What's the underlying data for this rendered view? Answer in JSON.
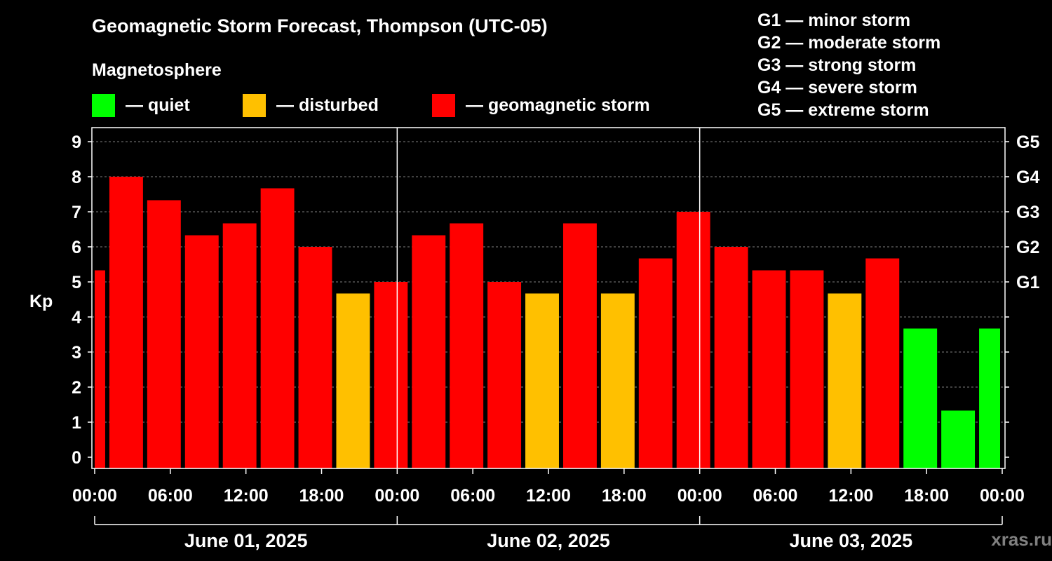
{
  "title": "Geomagnetic Storm Forecast, Thompson (UTC-05)",
  "legend": {
    "title": "Magnetosphere",
    "items": [
      {
        "color": "#00ff00",
        "label": "— quiet"
      },
      {
        "color": "#ffc000",
        "label": "— disturbed"
      },
      {
        "color": "#ff0000",
        "label": "— geomagnetic storm"
      }
    ]
  },
  "g_scale": [
    "G1 — minor storm",
    "G2 — moderate storm",
    "G3 — strong storm",
    "G4 — severe storm",
    "G5 — extreme storm"
  ],
  "watermark": "xras.ru",
  "chart_data": {
    "type": "bar",
    "ylabel": "Kp",
    "ylim": [
      0,
      9
    ],
    "yticks": [
      0,
      1,
      2,
      3,
      4,
      5,
      6,
      7,
      8,
      9
    ],
    "grid": "dashed horizontal",
    "right_axis_ticks": [
      {
        "kp": 5,
        "label": "G1"
      },
      {
        "kp": 6,
        "label": "G2"
      },
      {
        "kp": 7,
        "label": "G3"
      },
      {
        "kp": 8,
        "label": "G4"
      },
      {
        "kp": 9,
        "label": "G5"
      }
    ],
    "x_tick_labels": [
      "00:00",
      "06:00",
      "12:00",
      "18:00",
      "00:00",
      "06:00",
      "12:00",
      "18:00",
      "00:00",
      "06:00",
      "12:00",
      "18:00",
      "00:00"
    ],
    "day_labels": [
      "June 01, 2025",
      "June 02, 2025",
      "June 03, 2025"
    ],
    "colors": {
      "quiet": "#00ff00",
      "disturbed": "#ffc000",
      "storm": "#ff0000"
    },
    "bars": [
      {
        "start": "June 01, 2025 00:00",
        "hours": 1,
        "kp": 5.33,
        "level": "storm"
      },
      {
        "start": "June 01, 2025 01:00",
        "hours": 3,
        "kp": 8.0,
        "level": "storm"
      },
      {
        "start": "June 01, 2025 04:00",
        "hours": 3,
        "kp": 7.33,
        "level": "storm"
      },
      {
        "start": "June 01, 2025 07:00",
        "hours": 3,
        "kp": 6.33,
        "level": "storm"
      },
      {
        "start": "June 01, 2025 10:00",
        "hours": 3,
        "kp": 6.67,
        "level": "storm"
      },
      {
        "start": "June 01, 2025 13:00",
        "hours": 3,
        "kp": 7.67,
        "level": "storm"
      },
      {
        "start": "June 01, 2025 16:00",
        "hours": 3,
        "kp": 6.0,
        "level": "storm"
      },
      {
        "start": "June 01, 2025 19:00",
        "hours": 3,
        "kp": 4.67,
        "level": "disturbed"
      },
      {
        "start": "June 01, 2025 22:00",
        "hours": 3,
        "kp": 5.0,
        "level": "storm"
      },
      {
        "start": "June 02, 2025 01:00",
        "hours": 3,
        "kp": 6.33,
        "level": "storm"
      },
      {
        "start": "June 02, 2025 04:00",
        "hours": 3,
        "kp": 6.67,
        "level": "storm"
      },
      {
        "start": "June 02, 2025 07:00",
        "hours": 3,
        "kp": 5.0,
        "level": "storm"
      },
      {
        "start": "June 02, 2025 10:00",
        "hours": 3,
        "kp": 4.67,
        "level": "disturbed"
      },
      {
        "start": "June 02, 2025 13:00",
        "hours": 3,
        "kp": 6.67,
        "level": "storm"
      },
      {
        "start": "June 02, 2025 16:00",
        "hours": 3,
        "kp": 4.67,
        "level": "disturbed"
      },
      {
        "start": "June 02, 2025 19:00",
        "hours": 3,
        "kp": 5.67,
        "level": "storm"
      },
      {
        "start": "June 02, 2025 22:00",
        "hours": 3,
        "kp": 7.0,
        "level": "storm"
      },
      {
        "start": "June 03, 2025 01:00",
        "hours": 3,
        "kp": 6.0,
        "level": "storm"
      },
      {
        "start": "June 03, 2025 04:00",
        "hours": 3,
        "kp": 5.33,
        "level": "storm"
      },
      {
        "start": "June 03, 2025 07:00",
        "hours": 3,
        "kp": 5.33,
        "level": "storm"
      },
      {
        "start": "June 03, 2025 10:00",
        "hours": 3,
        "kp": 4.67,
        "level": "disturbed"
      },
      {
        "start": "June 03, 2025 13:00",
        "hours": 3,
        "kp": 5.67,
        "level": "storm"
      },
      {
        "start": "June 03, 2025 16:00",
        "hours": 3,
        "kp": 3.67,
        "level": "quiet"
      },
      {
        "start": "June 03, 2025 19:00",
        "hours": 3,
        "kp": 1.33,
        "level": "quiet"
      },
      {
        "start": "June 03, 2025 22:00",
        "hours": 2,
        "kp": 3.67,
        "level": "quiet"
      }
    ]
  }
}
